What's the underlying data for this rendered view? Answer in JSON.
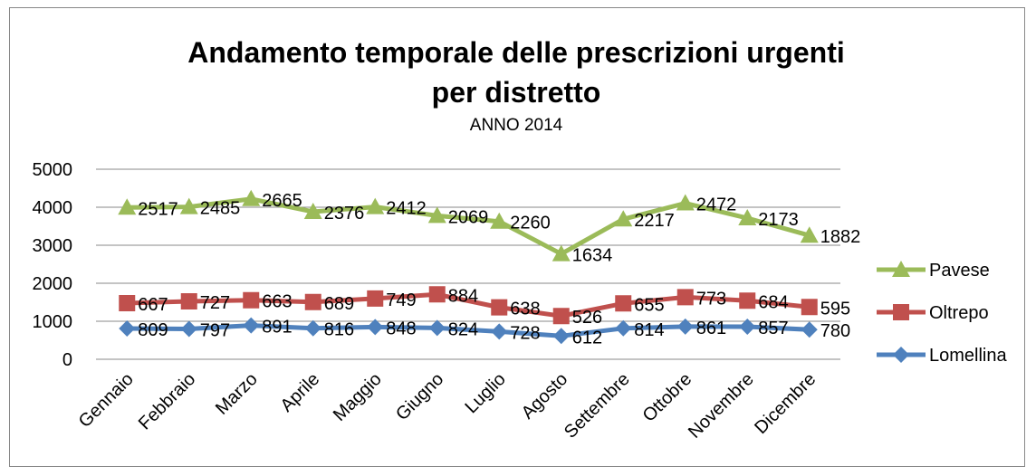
{
  "chart_data": {
    "type": "line",
    "stacked": true,
    "title": "Andamento temporale delle prescrizioni urgenti per distretto",
    "subtitle": "ANNO 2014",
    "categories": [
      "Gennaio",
      "Febbraio",
      "Marzo",
      "Aprile",
      "Maggio",
      "Giugno",
      "Luglio",
      "Agosto",
      "Settembre",
      "Ottobre",
      "Novembre",
      "Dicembre"
    ],
    "series": [
      {
        "name": "Lomellina",
        "color": "#4f81bd",
        "marker": "diamond",
        "values": [
          809,
          797,
          891,
          816,
          848,
          824,
          728,
          612,
          814,
          861,
          857,
          780
        ]
      },
      {
        "name": "Oltrepo",
        "color": "#c0504d",
        "marker": "square",
        "values": [
          667,
          727,
          663,
          689,
          749,
          884,
          638,
          526,
          655,
          773,
          684,
          595
        ]
      },
      {
        "name": "Pavese",
        "color": "#9bbb59",
        "marker": "triangle",
        "values": [
          2517,
          2485,
          2665,
          2376,
          2412,
          2069,
          2260,
          1634,
          2217,
          2472,
          2173,
          1882
        ]
      }
    ],
    "ylim": [
      0,
      5000
    ],
    "yticks": [
      0,
      1000,
      2000,
      3000,
      4000,
      5000
    ],
    "grid": true,
    "legend": "right"
  }
}
